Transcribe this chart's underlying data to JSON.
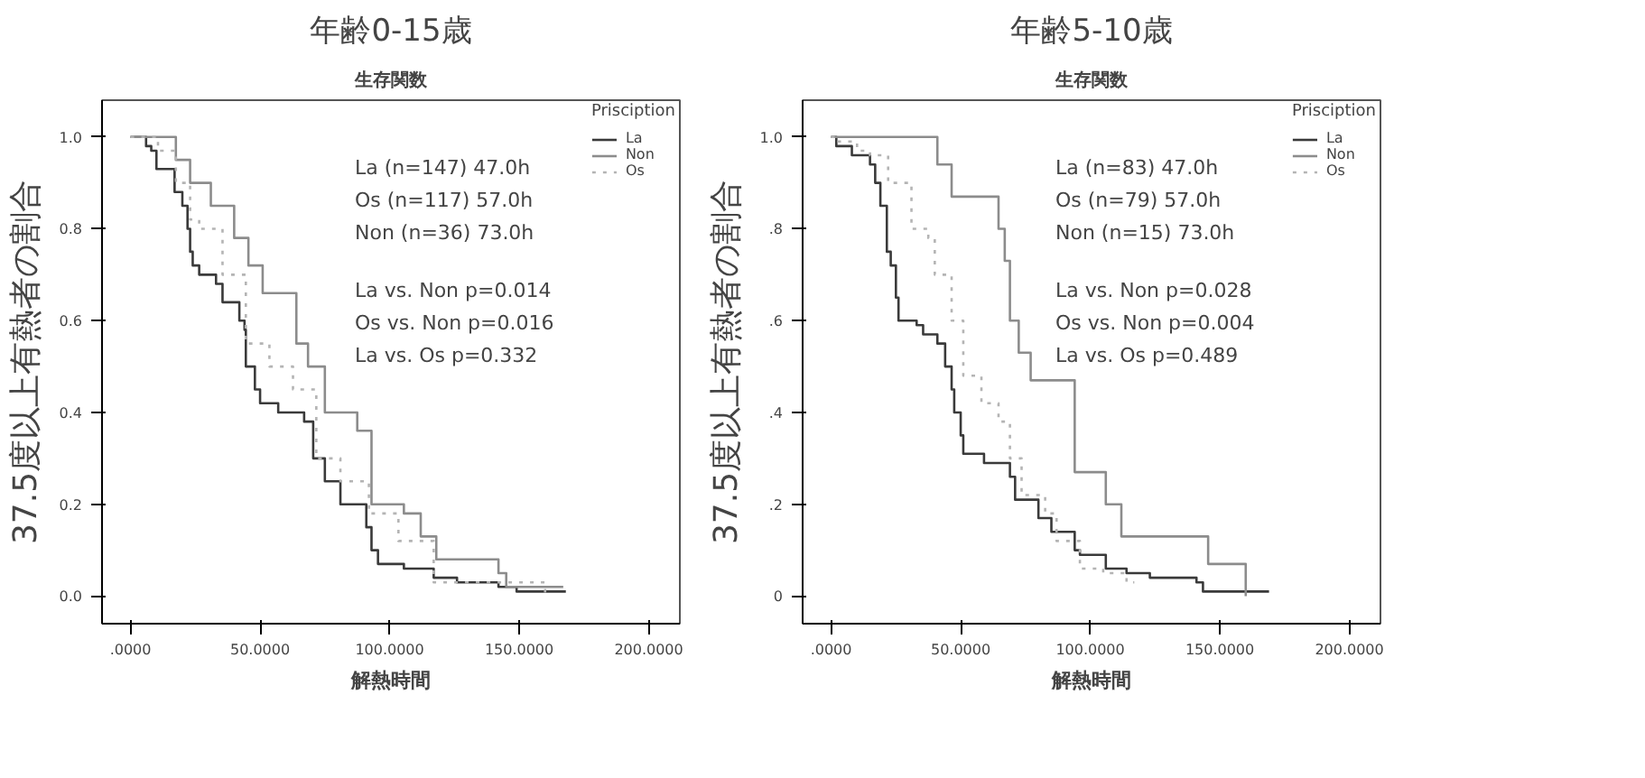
{
  "chart_data": [
    {
      "type": "step",
      "title": "年齢0-15歳",
      "subtitle": "生存関数",
      "xlabel": "解熱時間",
      "ylabel": "37.5度以上有熱者の割合",
      "legend_title": "Prisciption",
      "legend": "top right",
      "grid": false,
      "xlim": [
        -11,
        212
      ],
      "ylim": [
        -0.06,
        1.08
      ],
      "xticks": [
        {
          "value": 0,
          "label": ".0000"
        },
        {
          "value": 50,
          "label": "50.0000"
        },
        {
          "value": 100,
          "label": "100.0000"
        },
        {
          "value": 150,
          "label": "150.0000"
        },
        {
          "value": 200,
          "label": "200.0000"
        }
      ],
      "yticks": [
        {
          "value": 0,
          "label": "0.0"
        },
        {
          "value": 0.2,
          "label": "0.2"
        },
        {
          "value": 0.4,
          "label": "0.4"
        },
        {
          "value": 0.6,
          "label": "0.6"
        },
        {
          "value": 0.8,
          "label": "0.8"
        },
        {
          "value": 1.0,
          "label": "1.0"
        }
      ],
      "annotations": [
        "La (n=147)      47.0h",
        "Os (n=117)      57.0h",
        "Non (n=36)      73.0h",
        "La vs. Non p=0.014",
        "Os vs. Non p=0.016",
        "La vs. Os p=0.332"
      ],
      "series": [
        {
          "name": "La",
          "color": "#3a3a3a",
          "line_style": "solid",
          "x": [
            0,
            6,
            8,
            10,
            17,
            20,
            22,
            23,
            24,
            26.5,
            33,
            35.5,
            42,
            44,
            44.5,
            48,
            50,
            57,
            67,
            70.5,
            75,
            81,
            91,
            93,
            95.5,
            105.5,
            117,
            126,
            142,
            149,
            168
          ],
          "values": [
            1.0,
            0.98,
            0.97,
            0.93,
            0.88,
            0.85,
            0.8,
            0.75,
            0.72,
            0.7,
            0.68,
            0.64,
            0.6,
            0.58,
            0.5,
            0.45,
            0.42,
            0.4,
            0.38,
            0.3,
            0.25,
            0.2,
            0.15,
            0.1,
            0.07,
            0.06,
            0.04,
            0.03,
            0.02,
            0.01,
            0.01
          ]
        },
        {
          "name": "Non",
          "color": "#8c8c8c",
          "line_style": "solid",
          "x": [
            0,
            17.5,
            23,
            31,
            40,
            45.5,
            51,
            64,
            68.5,
            75,
            87.5,
            93,
            105.5,
            112,
            118,
            142,
            145,
            167
          ],
          "values": [
            1.0,
            0.95,
            0.9,
            0.85,
            0.78,
            0.72,
            0.66,
            0.55,
            0.5,
            0.4,
            0.36,
            0.2,
            0.18,
            0.13,
            0.08,
            0.05,
            0.02,
            0.02
          ]
        },
        {
          "name": "Os",
          "color": "#b4b4b4",
          "line_style": "dotted",
          "x": [
            0,
            10.6,
            17.5,
            23,
            26.5,
            35.5,
            44.5,
            53.6,
            62.7,
            71.7,
            81,
            92,
            103.4,
            117,
            160
          ],
          "values": [
            1.0,
            0.97,
            0.9,
            0.82,
            0.8,
            0.7,
            0.55,
            0.5,
            0.45,
            0.3,
            0.25,
            0.18,
            0.12,
            0.03,
            0.0
          ]
        }
      ]
    },
    {
      "type": "step",
      "title": "年齢5-10歳",
      "subtitle": "生存関数",
      "xlabel": "解熱時間",
      "ylabel": "37.5度以上有熱者の割合",
      "legend_title": "Prisciption",
      "legend": "top right",
      "grid": false,
      "xlim": [
        -11,
        212
      ],
      "ylim": [
        -0.06,
        1.08
      ],
      "xticks": [
        {
          "value": 0,
          "label": ".0000"
        },
        {
          "value": 50,
          "label": "50.0000"
        },
        {
          "value": 100,
          "label": "100.0000"
        },
        {
          "value": 150,
          "label": "150.0000"
        },
        {
          "value": 200,
          "label": "200.0000"
        }
      ],
      "yticks": [
        {
          "value": 0,
          "label": "0"
        },
        {
          "value": 0.2,
          "label": ".2"
        },
        {
          "value": 0.4,
          "label": ".4"
        },
        {
          "value": 0.6,
          "label": ".6"
        },
        {
          "value": 0.8,
          "label": ".8"
        },
        {
          "value": 1.0,
          "label": "1.0"
        }
      ],
      "annotations": [
        "La (n=83)       47.0h",
        "Os (n=79)       57.0h",
        "Non (n=15)  73.0h",
        "La vs. Non p=0.028",
        "Os vs. Non p=0.004",
        "La vs. Os p=0.489"
      ],
      "series": [
        {
          "name": "La",
          "color": "#3a3a3a",
          "line_style": "solid",
          "x": [
            0,
            2,
            8,
            15,
            17,
            19,
            21.5,
            23,
            25,
            26,
            33,
            35.5,
            41,
            44,
            46.5,
            47.5,
            50,
            51,
            59,
            69,
            71,
            80,
            85,
            94,
            96,
            106,
            114,
            123,
            141,
            143.5,
            169
          ],
          "values": [
            1.0,
            0.98,
            0.96,
            0.94,
            0.9,
            0.85,
            0.75,
            0.72,
            0.65,
            0.6,
            0.59,
            0.57,
            0.55,
            0.5,
            0.45,
            0.4,
            0.35,
            0.31,
            0.29,
            0.26,
            0.21,
            0.17,
            0.14,
            0.1,
            0.09,
            0.06,
            0.05,
            0.04,
            0.03,
            0.01,
            0.01
          ]
        },
        {
          "name": "Non",
          "color": "#8c8c8c",
          "line_style": "solid",
          "x": [
            0,
            41,
            46.5,
            64.6,
            67,
            69,
            72.4,
            77,
            94,
            106,
            112,
            145.5,
            160
          ],
          "values": [
            1.0,
            0.94,
            0.87,
            0.8,
            0.73,
            0.6,
            0.53,
            0.47,
            0.27,
            0.2,
            0.13,
            0.07,
            0.0
          ]
        },
        {
          "name": "Os",
          "color": "#b4b4b4",
          "line_style": "dotted",
          "x": [
            0,
            2,
            10,
            15,
            22,
            31,
            37.5,
            40,
            46.5,
            51,
            58,
            64.6,
            69,
            73.5,
            82.6,
            87,
            96,
            105,
            114,
            117
          ],
          "values": [
            1.0,
            0.99,
            0.97,
            0.96,
            0.9,
            0.8,
            0.78,
            0.7,
            0.6,
            0.48,
            0.42,
            0.38,
            0.3,
            0.22,
            0.18,
            0.12,
            0.06,
            0.05,
            0.03,
            0.03
          ]
        }
      ]
    }
  ]
}
